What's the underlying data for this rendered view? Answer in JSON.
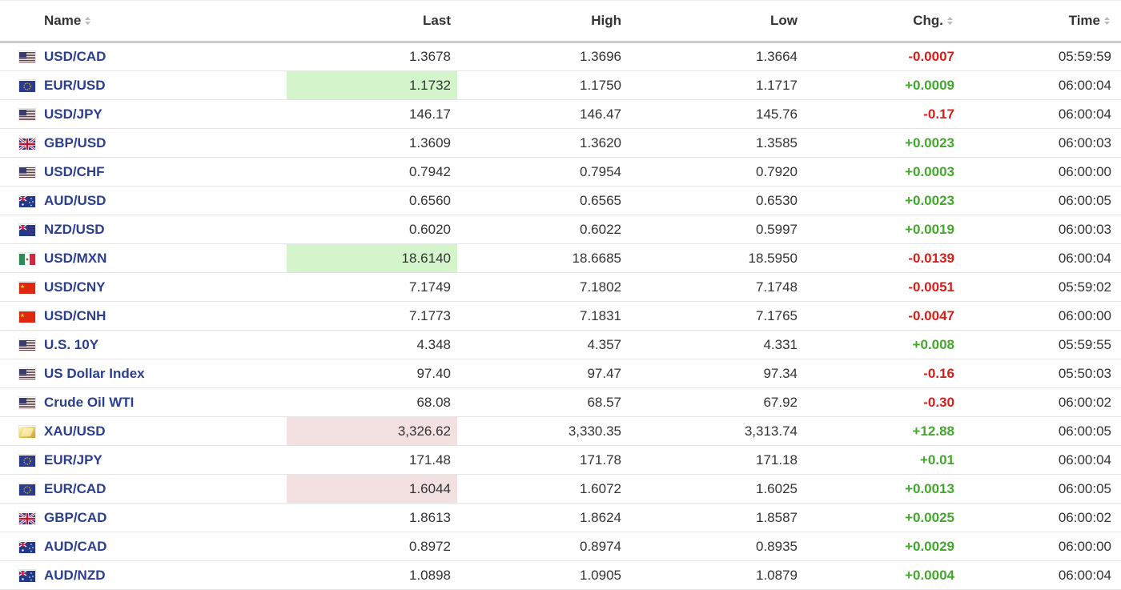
{
  "headers": {
    "name": "Name",
    "last": "Last",
    "high": "High",
    "low": "Low",
    "chg": "Chg.",
    "time": "Time"
  },
  "colors": {
    "link": "#2a3f8f",
    "up": "#44a72e",
    "down": "#d91e18",
    "highlight_up": "#d4f5cc",
    "highlight_down": "#f3e0e0"
  },
  "rows": [
    {
      "flag": "us",
      "name": "USD/CAD",
      "last": "1.3678",
      "high": "1.3696",
      "low": "1.3664",
      "chg": "-0.0007",
      "dir": "down",
      "time": "05:59:59",
      "hl": ""
    },
    {
      "flag": "eu",
      "name": "EUR/USD",
      "last": "1.1732",
      "high": "1.1750",
      "low": "1.1717",
      "chg": "+0.0009",
      "dir": "up",
      "time": "06:00:04",
      "hl": "up"
    },
    {
      "flag": "us",
      "name": "USD/JPY",
      "last": "146.17",
      "high": "146.47",
      "low": "145.76",
      "chg": "-0.17",
      "dir": "down",
      "time": "06:00:04",
      "hl": ""
    },
    {
      "flag": "uk",
      "name": "GBP/USD",
      "last": "1.3609",
      "high": "1.3620",
      "low": "1.3585",
      "chg": "+0.0023",
      "dir": "up",
      "time": "06:00:03",
      "hl": ""
    },
    {
      "flag": "us",
      "name": "USD/CHF",
      "last": "0.7942",
      "high": "0.7954",
      "low": "0.7920",
      "chg": "+0.0003",
      "dir": "up",
      "time": "06:00:00",
      "hl": ""
    },
    {
      "flag": "au",
      "name": "AUD/USD",
      "last": "0.6560",
      "high": "0.6565",
      "low": "0.6530",
      "chg": "+0.0023",
      "dir": "up",
      "time": "06:00:05",
      "hl": ""
    },
    {
      "flag": "nz",
      "name": "NZD/USD",
      "last": "0.6020",
      "high": "0.6022",
      "low": "0.5997",
      "chg": "+0.0019",
      "dir": "up",
      "time": "06:00:03",
      "hl": ""
    },
    {
      "flag": "mx",
      "name": "USD/MXN",
      "last": "18.6140",
      "high": "18.6685",
      "low": "18.5950",
      "chg": "-0.0139",
      "dir": "down",
      "time": "06:00:04",
      "hl": "up"
    },
    {
      "flag": "cn",
      "name": "USD/CNY",
      "last": "7.1749",
      "high": "7.1802",
      "low": "7.1748",
      "chg": "-0.0051",
      "dir": "down",
      "time": "05:59:02",
      "hl": ""
    },
    {
      "flag": "cn",
      "name": "USD/CNH",
      "last": "7.1773",
      "high": "7.1831",
      "low": "7.1765",
      "chg": "-0.0047",
      "dir": "down",
      "time": "06:00:00",
      "hl": ""
    },
    {
      "flag": "us",
      "name": "U.S. 10Y",
      "last": "4.348",
      "high": "4.357",
      "low": "4.331",
      "chg": "+0.008",
      "dir": "up",
      "time": "05:59:55",
      "hl": ""
    },
    {
      "flag": "us",
      "name": "US Dollar Index",
      "last": "97.40",
      "high": "97.47",
      "low": "97.34",
      "chg": "-0.16",
      "dir": "down",
      "time": "05:50:03",
      "hl": ""
    },
    {
      "flag": "us",
      "name": "Crude Oil WTI",
      "last": "68.08",
      "high": "68.57",
      "low": "67.92",
      "chg": "-0.30",
      "dir": "down",
      "time": "06:00:02",
      "hl": ""
    },
    {
      "flag": "gold",
      "name": "XAU/USD",
      "last": "3,326.62",
      "high": "3,330.35",
      "low": "3,313.74",
      "chg": "+12.88",
      "dir": "up",
      "time": "06:00:05",
      "hl": "down"
    },
    {
      "flag": "eu",
      "name": "EUR/JPY",
      "last": "171.48",
      "high": "171.78",
      "low": "171.18",
      "chg": "+0.01",
      "dir": "up",
      "time": "06:00:04",
      "hl": ""
    },
    {
      "flag": "eu",
      "name": "EUR/CAD",
      "last": "1.6044",
      "high": "1.6072",
      "low": "1.6025",
      "chg": "+0.0013",
      "dir": "up",
      "time": "06:00:05",
      "hl": "down"
    },
    {
      "flag": "uk",
      "name": "GBP/CAD",
      "last": "1.8613",
      "high": "1.8624",
      "low": "1.8587",
      "chg": "+0.0025",
      "dir": "up",
      "time": "06:00:02",
      "hl": ""
    },
    {
      "flag": "au",
      "name": "AUD/CAD",
      "last": "0.8972",
      "high": "0.8974",
      "low": "0.8935",
      "chg": "+0.0029",
      "dir": "up",
      "time": "06:00:00",
      "hl": ""
    },
    {
      "flag": "au",
      "name": "AUD/NZD",
      "last": "1.0898",
      "high": "1.0905",
      "low": "1.0879",
      "chg": "+0.0004",
      "dir": "up",
      "time": "06:00:04",
      "hl": ""
    }
  ]
}
